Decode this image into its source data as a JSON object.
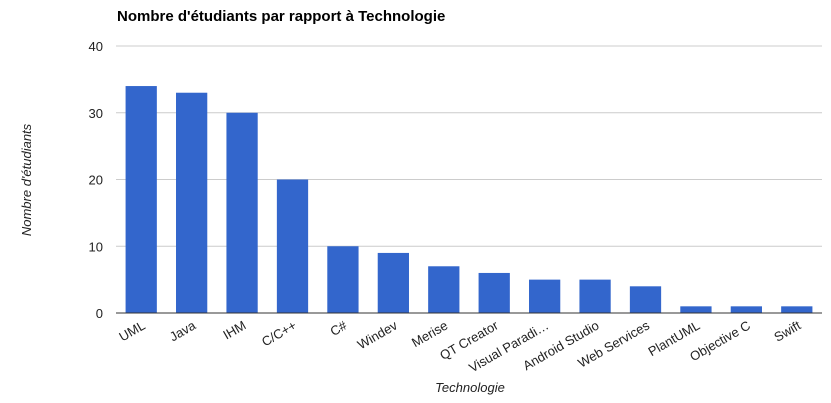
{
  "chart_data": {
    "type": "bar",
    "title": "Nombre d'étudiants par rapport à Technologie",
    "xlabel": "Technologie",
    "ylabel": "Nombre d'étudiants",
    "ylim": [
      0,
      40
    ],
    "yticks": [
      0,
      10,
      20,
      30,
      40
    ],
    "grid": true,
    "legend": "none",
    "categories": [
      "UML",
      "Java",
      "IHM",
      "C/C++",
      "C#",
      "Windev",
      "Merise",
      "QT Creator",
      "Visual Paradi…",
      "Android Studio",
      "Web Services",
      "PlantUML",
      "Objective C",
      "Swift"
    ],
    "values": [
      34,
      33,
      30,
      20,
      10,
      9,
      7,
      6,
      5,
      5,
      4,
      1,
      1,
      1
    ],
    "colors": {
      "bar": "#3366cc",
      "grid": "#cccccc",
      "baseline": "#333333",
      "text": "#222222",
      "title": "#000000"
    }
  }
}
